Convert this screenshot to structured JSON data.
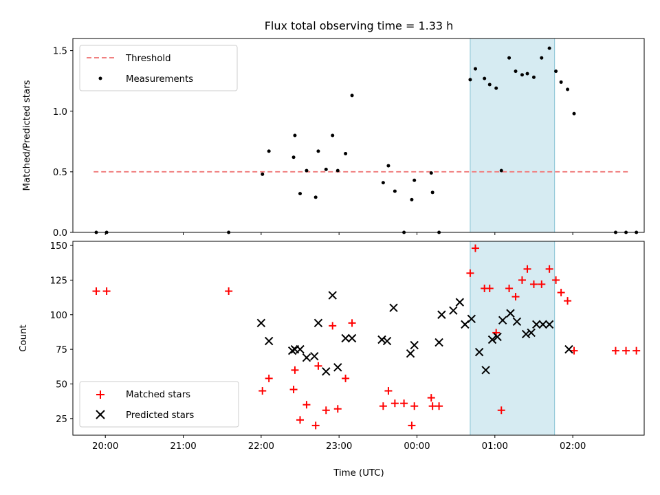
{
  "chart_data": [
    {
      "type": "scatter",
      "title": "Flux total observing time = 1.33 h",
      "xlabel": "",
      "ylabel": "Matched/Predicted stars",
      "ylim": [
        0,
        1.6
      ],
      "yticks": [
        "0.0",
        "0.5",
        "1.0",
        "1.5"
      ],
      "xlim": [
        "19:35",
        "02:55"
      ],
      "xticks": [
        "20:00",
        "21:00",
        "22:00",
        "23:00",
        "00:00",
        "01:00",
        "02:00"
      ],
      "highlight_span": {
        "start": "00:41",
        "end": "01:46",
        "color": "#add8e6"
      },
      "threshold": {
        "name": "Threshold",
        "value": 0.5,
        "x_range": [
          "19:51",
          "02:43"
        ],
        "color": "#f08080"
      },
      "series": [
        {
          "name": "Measurements",
          "color": "#000000",
          "marker": "dot",
          "points": [
            [
              "19:53",
              0.0
            ],
            [
              "20:01",
              0.0
            ],
            [
              "21:35",
              0.0
            ],
            [
              "22:01",
              0.48
            ],
            [
              "22:06",
              0.67
            ],
            [
              "22:25",
              0.62
            ],
            [
              "22:26",
              0.8
            ],
            [
              "22:30",
              0.32
            ],
            [
              "22:35",
              0.51
            ],
            [
              "22:42",
              0.29
            ],
            [
              "22:44",
              0.67
            ],
            [
              "22:50",
              0.52
            ],
            [
              "22:55",
              0.8
            ],
            [
              "22:59",
              0.51
            ],
            [
              "23:05",
              0.65
            ],
            [
              "23:10",
              1.13
            ],
            [
              "23:34",
              0.41
            ],
            [
              "23:38",
              0.55
            ],
            [
              "23:43",
              0.34
            ],
            [
              "23:50",
              0.0
            ],
            [
              "23:56",
              0.27
            ],
            [
              "23:58",
              0.43
            ],
            [
              "00:11",
              0.49
            ],
            [
              "00:12",
              0.33
            ],
            [
              "00:17",
              0.0
            ],
            [
              "00:41",
              1.26
            ],
            [
              "00:45",
              1.35
            ],
            [
              "00:52",
              1.27
            ],
            [
              "00:56",
              1.22
            ],
            [
              "01:01",
              1.19
            ],
            [
              "01:05",
              0.51
            ],
            [
              "01:11",
              1.44
            ],
            [
              "01:16",
              1.33
            ],
            [
              "01:21",
              1.3
            ],
            [
              "01:25",
              1.31
            ],
            [
              "01:30",
              1.28
            ],
            [
              "01:36",
              1.44
            ],
            [
              "01:42",
              1.52
            ],
            [
              "01:47",
              1.33
            ],
            [
              "01:51",
              1.24
            ],
            [
              "01:56",
              1.18
            ],
            [
              "02:01",
              0.98
            ],
            [
              "02:33",
              0.0
            ],
            [
              "02:41",
              0.0
            ],
            [
              "02:49",
              0.0
            ]
          ]
        }
      ],
      "legend": {
        "placement": "top-left",
        "entries": [
          "Threshold",
          "Measurements"
        ]
      }
    },
    {
      "type": "scatter",
      "title": "",
      "xlabel": "Time (UTC)",
      "ylabel": "Count",
      "ylim": [
        13,
        153
      ],
      "yticks": [
        "25",
        "50",
        "75",
        "100",
        "125",
        "150"
      ],
      "xlim": [
        "19:35",
        "02:55"
      ],
      "xticks": [
        "20:00",
        "21:00",
        "22:00",
        "23:00",
        "00:00",
        "01:00",
        "02:00"
      ],
      "highlight_span": {
        "start": "00:41",
        "end": "01:46",
        "color": "#add8e6"
      },
      "series": [
        {
          "name": "Matched stars",
          "color": "#ff0000",
          "marker": "plus",
          "points": [
            [
              "19:53",
              117
            ],
            [
              "20:01",
              117
            ],
            [
              "21:35",
              117
            ],
            [
              "22:01",
              45
            ],
            [
              "22:06",
              54
            ],
            [
              "22:25",
              46
            ],
            [
              "22:26",
              60
            ],
            [
              "22:30",
              24
            ],
            [
              "22:35",
              35
            ],
            [
              "22:42",
              20
            ],
            [
              "22:44",
              63
            ],
            [
              "22:50",
              31
            ],
            [
              "22:55",
              92
            ],
            [
              "22:59",
              32
            ],
            [
              "23:05",
              54
            ],
            [
              "23:10",
              94
            ],
            [
              "23:34",
              34
            ],
            [
              "23:38",
              45
            ],
            [
              "23:43",
              36
            ],
            [
              "23:50",
              36
            ],
            [
              "23:56",
              20
            ],
            [
              "23:58",
              34
            ],
            [
              "00:11",
              40
            ],
            [
              "00:12",
              34
            ],
            [
              "00:17",
              34
            ],
            [
              "00:41",
              130
            ],
            [
              "00:45",
              148
            ],
            [
              "00:52",
              119
            ],
            [
              "00:56",
              119
            ],
            [
              "01:01",
              87
            ],
            [
              "01:05",
              31
            ],
            [
              "01:11",
              119
            ],
            [
              "01:16",
              113
            ],
            [
              "01:21",
              125
            ],
            [
              "01:25",
              133
            ],
            [
              "01:30",
              122
            ],
            [
              "01:36",
              122
            ],
            [
              "01:42",
              133
            ],
            [
              "01:47",
              125
            ],
            [
              "01:51",
              116
            ],
            [
              "01:56",
              110
            ],
            [
              "02:01",
              74
            ],
            [
              "02:33",
              74
            ],
            [
              "02:41",
              74
            ],
            [
              "02:49",
              74
            ]
          ]
        },
        {
          "name": "Predicted stars",
          "color": "#000000",
          "marker": "x",
          "points": [
            [
              "22:00",
              94
            ],
            [
              "22:06",
              81
            ],
            [
              "22:24",
              74
            ],
            [
              "22:26",
              75
            ],
            [
              "22:30",
              75
            ],
            [
              "22:35",
              69
            ],
            [
              "22:41",
              70
            ],
            [
              "22:44",
              94
            ],
            [
              "22:50",
              59
            ],
            [
              "22:55",
              114
            ],
            [
              "22:59",
              62
            ],
            [
              "23:05",
              83
            ],
            [
              "23:10",
              83
            ],
            [
              "23:33",
              82
            ],
            [
              "23:37",
              81
            ],
            [
              "23:42",
              105
            ],
            [
              "23:55",
              72
            ],
            [
              "23:58",
              78
            ],
            [
              "00:17",
              80
            ],
            [
              "00:19",
              100
            ],
            [
              "00:28",
              103
            ],
            [
              "00:33",
              109
            ],
            [
              "00:37",
              93
            ],
            [
              "00:42",
              97
            ],
            [
              "00:48",
              73
            ],
            [
              "00:53",
              60
            ],
            [
              "00:58",
              82
            ],
            [
              "01:02",
              84
            ],
            [
              "01:06",
              96
            ],
            [
              "01:12",
              101
            ],
            [
              "01:17",
              95
            ],
            [
              "01:24",
              86
            ],
            [
              "01:28",
              87
            ],
            [
              "01:32",
              93
            ],
            [
              "01:37",
              93
            ],
            [
              "01:42",
              93
            ],
            [
              "01:57",
              75
            ]
          ]
        }
      ],
      "legend": {
        "placement": "bottom-left",
        "entries": [
          "Matched stars",
          "Predicted stars"
        ]
      }
    }
  ]
}
